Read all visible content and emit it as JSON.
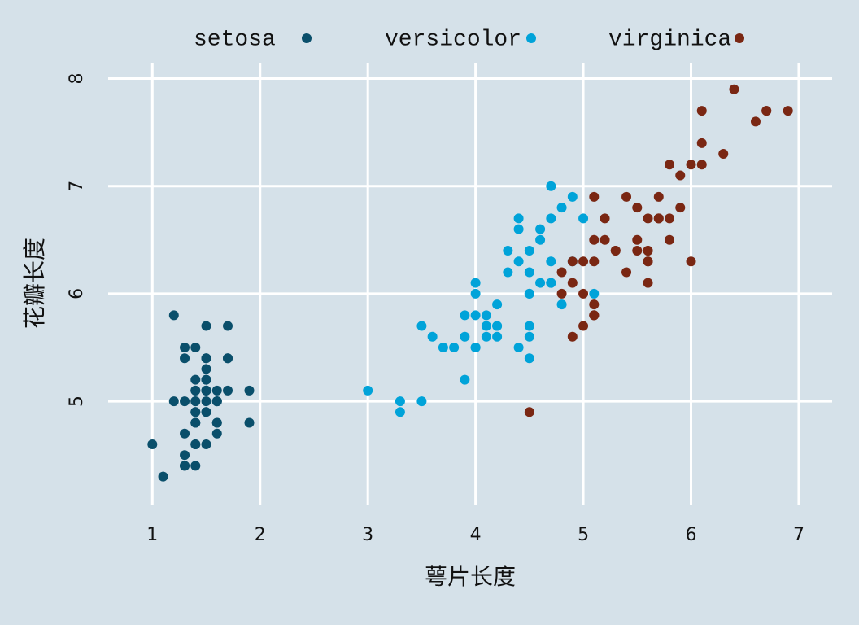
{
  "chart_data": {
    "type": "scatter",
    "x_label": "萼片长度",
    "y_label": "花瓣长度",
    "xlim": [
      0.59,
      7.31
    ],
    "ylim": [
      4.04,
      8.14
    ],
    "xticks": [
      1,
      2,
      3,
      4,
      5,
      6,
      7
    ],
    "yticks": [
      5,
      6,
      7,
      8
    ],
    "grid": true,
    "legend": "top",
    "series": [
      {
        "name": "setosa",
        "color": "#0a4f6b",
        "x": [
          1.4,
          1.4,
          1.3,
          1.5,
          1.4,
          1.7,
          1.4,
          1.5,
          1.4,
          1.5,
          1.5,
          1.6,
          1.4,
          1.1,
          1.2,
          1.5,
          1.3,
          1.4,
          1.7,
          1.5,
          1.7,
          1.5,
          1.0,
          1.7,
          1.9,
          1.6,
          1.6,
          1.5,
          1.4,
          1.6,
          1.6,
          1.5,
          1.5,
          1.4,
          1.5,
          1.2,
          1.3,
          1.4,
          1.3,
          1.5,
          1.3,
          1.3,
          1.3,
          1.6,
          1.9,
          1.4,
          1.6,
          1.4,
          1.5,
          1.4
        ],
        "values": [
          5.1,
          4.9,
          4.7,
          4.6,
          5.0,
          5.4,
          4.6,
          5.0,
          4.4,
          4.9,
          5.4,
          4.8,
          4.8,
          4.3,
          5.8,
          5.7,
          5.4,
          5.1,
          5.7,
          5.1,
          5.4,
          5.1,
          4.6,
          5.1,
          4.8,
          5.0,
          5.0,
          5.2,
          5.2,
          4.7,
          4.8,
          5.4,
          5.2,
          5.5,
          4.9,
          5.0,
          5.5,
          4.9,
          4.4,
          5.1,
          5.0,
          4.5,
          4.4,
          5.0,
          5.1,
          4.8,
          5.1,
          4.6,
          5.3,
          5.0
        ]
      },
      {
        "name": "versicolor",
        "color": "#00a3d9",
        "x": [
          4.7,
          4.5,
          4.9,
          4.0,
          4.6,
          4.5,
          4.7,
          3.3,
          4.6,
          3.9,
          3.5,
          4.2,
          4.0,
          4.7,
          3.6,
          4.4,
          4.5,
          4.1,
          4.5,
          3.9,
          4.8,
          4.0,
          4.9,
          4.7,
          4.3,
          4.4,
          4.8,
          5.0,
          4.5,
          3.5,
          3.8,
          3.7,
          3.9,
          5.1,
          4.5,
          4.5,
          4.7,
          4.4,
          4.1,
          4.0,
          4.4,
          4.6,
          4.0,
          3.3,
          4.2,
          4.2,
          4.2,
          4.3,
          3.0,
          4.1
        ],
        "values": [
          7.0,
          6.4,
          6.9,
          5.5,
          6.5,
          5.7,
          6.3,
          4.9,
          6.6,
          5.2,
          5.0,
          5.9,
          6.0,
          6.1,
          5.6,
          6.7,
          5.6,
          5.8,
          6.2,
          5.6,
          5.9,
          6.1,
          6.3,
          6.1,
          6.4,
          6.6,
          6.8,
          6.7,
          6.0,
          5.7,
          5.5,
          5.5,
          5.8,
          6.0,
          5.4,
          6.0,
          6.7,
          6.3,
          5.6,
          5.5,
          5.5,
          6.1,
          5.8,
          5.0,
          5.6,
          5.7,
          5.7,
          6.2,
          5.1,
          5.7
        ]
      },
      {
        "name": "virginica",
        "color": "#7a2713",
        "x": [
          6.0,
          5.1,
          5.9,
          5.6,
          5.8,
          6.6,
          4.5,
          6.3,
          5.8,
          6.1,
          5.1,
          5.3,
          5.5,
          5.0,
          5.1,
          5.3,
          5.5,
          6.7,
          6.9,
          5.0,
          5.7,
          4.9,
          6.7,
          4.9,
          5.7,
          6.0,
          4.8,
          4.9,
          5.6,
          5.8,
          6.1,
          6.4,
          5.6,
          5.1,
          5.6,
          6.1,
          5.6,
          5.5,
          4.8,
          5.4,
          5.6,
          5.1,
          5.1,
          5.9,
          5.7,
          5.2,
          5.0,
          5.2,
          5.4,
          5.1
        ],
        "values": [
          6.3,
          5.8,
          7.1,
          6.3,
          6.5,
          7.6,
          4.9,
          7.3,
          6.7,
          7.2,
          6.5,
          6.4,
          6.8,
          5.7,
          5.8,
          6.4,
          6.5,
          7.7,
          7.7,
          6.0,
          6.9,
          5.6,
          7.7,
          6.3,
          6.7,
          7.2,
          6.2,
          6.1,
          6.4,
          7.2,
          7.4,
          7.9,
          6.4,
          6.3,
          6.1,
          7.7,
          6.3,
          6.4,
          6.0,
          6.9,
          6.7,
          6.9,
          5.8,
          6.8,
          6.7,
          6.7,
          6.3,
          6.5,
          6.2,
          5.9
        ]
      }
    ]
  }
}
